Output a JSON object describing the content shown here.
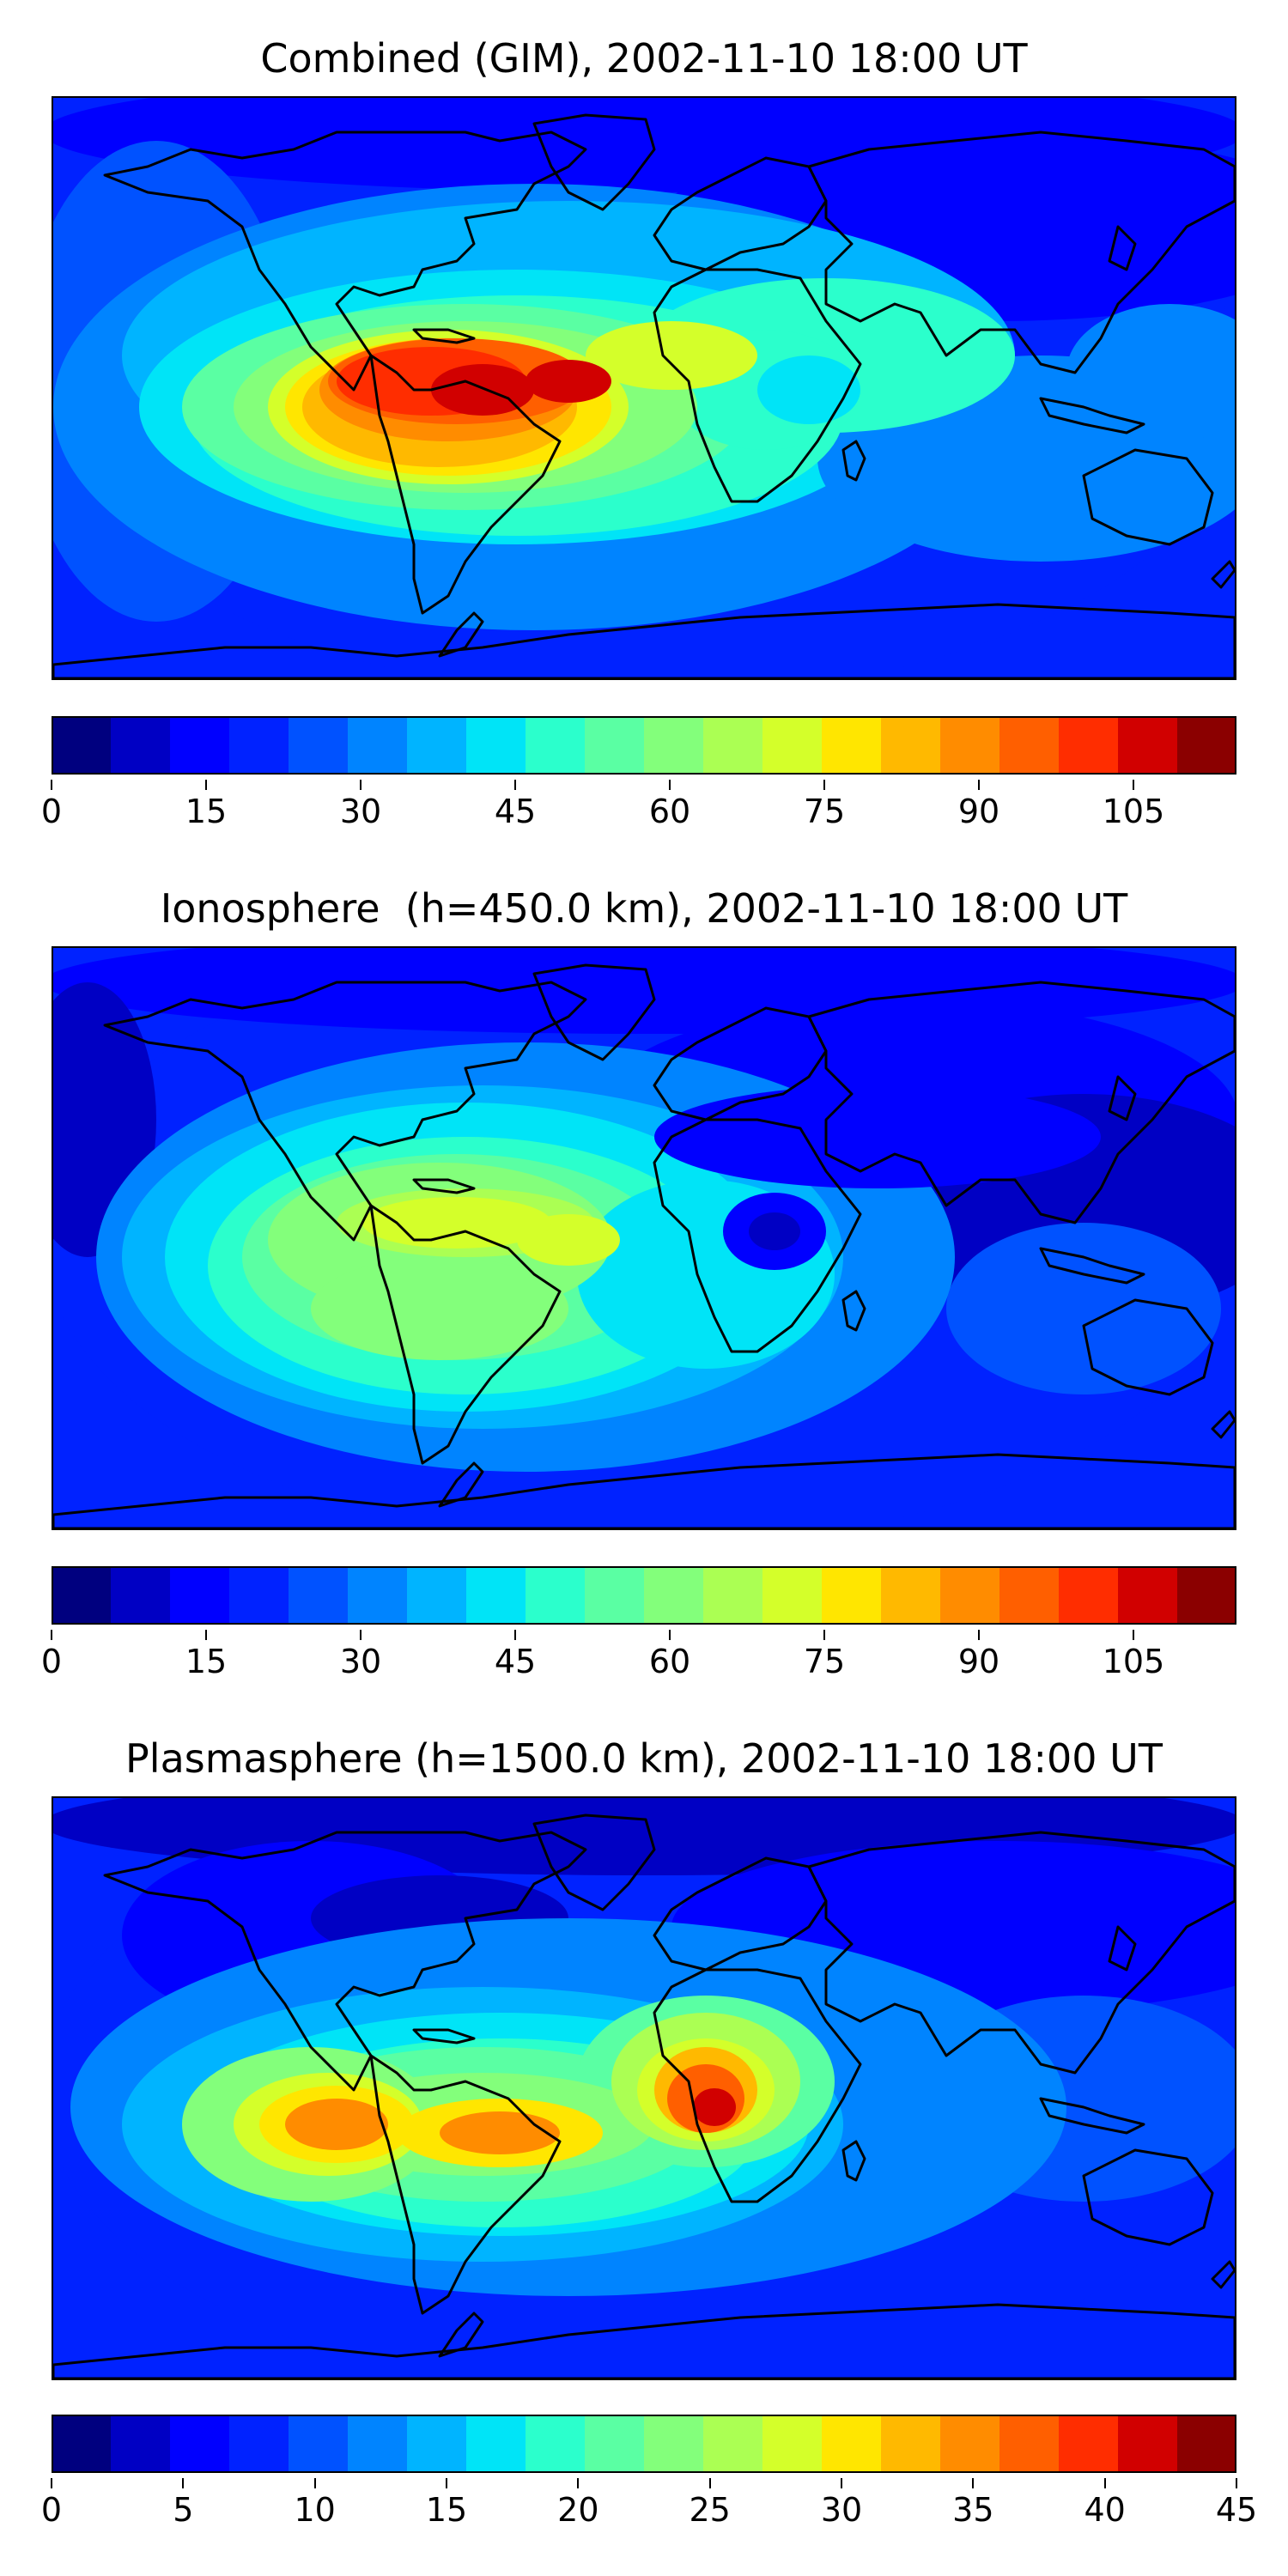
{
  "date": "2002-11-10 18:00 UT",
  "colormap": [
    "#00007f",
    "#0000c4",
    "#0000ff",
    "#0022ff",
    "#0052ff",
    "#0084ff",
    "#00b4ff",
    "#00e4f7",
    "#2bffcc",
    "#5affa3",
    "#83ff7b",
    "#abff53",
    "#d4ff2a",
    "#ffe600",
    "#ffb900",
    "#ff8c00",
    "#ff5f00",
    "#ff2d00",
    "#d10000",
    "#8b0000"
  ],
  "panels": [
    {
      "title": "Combined (GIM), 2002-11-10 18:00 UT",
      "colorbar": {
        "min": 0,
        "max": 115,
        "ticks": [
          "0",
          "15",
          "30",
          "45",
          "60",
          "75",
          "90",
          "105"
        ],
        "tick_values": [
          0,
          15,
          30,
          45,
          60,
          75,
          90,
          105
        ]
      },
      "field": "combined"
    },
    {
      "title": "Ionosphere  (h=450.0 km), 2002-11-10 18:00 UT",
      "colorbar": {
        "min": 0,
        "max": 115,
        "ticks": [
          "0",
          "15",
          "30",
          "45",
          "60",
          "75",
          "90",
          "105"
        ],
        "tick_values": [
          0,
          15,
          30,
          45,
          60,
          75,
          90,
          105
        ]
      },
      "field": "ionosphere"
    },
    {
      "title": "Plasmasphere (h=1500.0 km), 2002-11-10 18:00 UT",
      "colorbar": {
        "min": 0,
        "max": 45,
        "ticks": [
          "0",
          "5",
          "10",
          "15",
          "20",
          "25",
          "30",
          "35",
          "40",
          "45"
        ],
        "tick_values": [
          0,
          5,
          10,
          15,
          20,
          25,
          30,
          35,
          40,
          45
        ]
      },
      "field": "plasmasphere"
    }
  ]
}
